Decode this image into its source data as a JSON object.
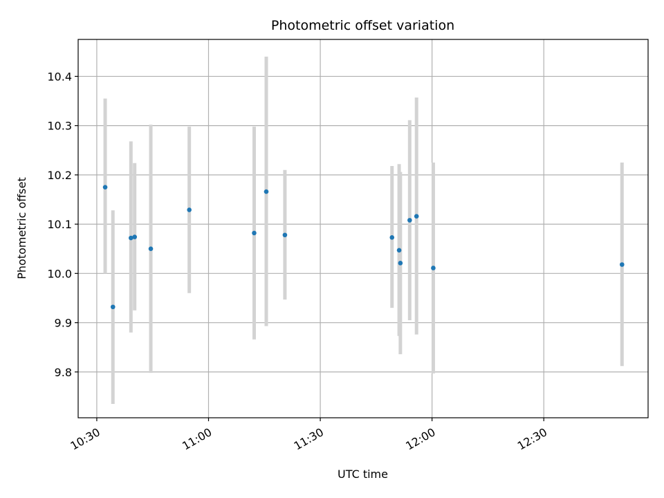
{
  "chart_data": {
    "type": "scatter",
    "title": "Photometric offset variation",
    "xlabel": "UTC time",
    "ylabel": "Photometric offset",
    "x_tick_labels": [
      "10:30",
      "11:00",
      "11:30",
      "12:00",
      "12:30"
    ],
    "x_ticks": [
      "10:30",
      "11:00",
      "11:30",
      "12:00",
      "12:30"
    ],
    "xlim": [
      "10:25",
      "12:58"
    ],
    "y_ticks": [
      9.8,
      9.9,
      10.0,
      10.1,
      10.2,
      10.3,
      10.4
    ],
    "y_tick_labels": [
      "9.8",
      "9.9",
      "10.0",
      "10.1",
      "10.2",
      "10.3",
      "10.4"
    ],
    "ylim": [
      9.707,
      10.475
    ],
    "grid": true,
    "colors": {
      "marker": "#1f77b4",
      "errorbar": "#d3d3d3",
      "grid": "#b0b0b0"
    },
    "points": [
      {
        "x": "10:32:15",
        "y": 10.175,
        "ylow": 10.0,
        "yhigh": 10.355
      },
      {
        "x": "10:34:20",
        "y": 9.932,
        "ylow": 9.735,
        "yhigh": 10.128
      },
      {
        "x": "10:39:10",
        "y": 10.072,
        "ylow": 9.88,
        "yhigh": 10.268
      },
      {
        "x": "10:40:10",
        "y": 10.074,
        "ylow": 9.925,
        "yhigh": 10.224
      },
      {
        "x": "10:44:30",
        "y": 10.05,
        "ylow": 9.798,
        "yhigh": 10.302
      },
      {
        "x": "10:54:50",
        "y": 10.129,
        "ylow": 9.96,
        "yhigh": 10.298
      },
      {
        "x": "11:12:15",
        "y": 10.082,
        "ylow": 9.866,
        "yhigh": 10.298
      },
      {
        "x": "11:15:30",
        "y": 10.166,
        "ylow": 9.893,
        "yhigh": 10.44
      },
      {
        "x": "11:20:30",
        "y": 10.078,
        "ylow": 9.947,
        "yhigh": 10.21
      },
      {
        "x": "11:49:15",
        "y": 10.073,
        "ylow": 9.93,
        "yhigh": 10.218
      },
      {
        "x": "11:51:10",
        "y": 10.047,
        "ylow": 9.873,
        "yhigh": 10.222
      },
      {
        "x": "11:51:30",
        "y": 10.021,
        "ylow": 9.836,
        "yhigh": 10.206
      },
      {
        "x": "11:54:00",
        "y": 10.108,
        "ylow": 9.905,
        "yhigh": 10.311
      },
      {
        "x": "11:55:50",
        "y": 10.116,
        "ylow": 9.876,
        "yhigh": 10.357
      },
      {
        "x": "12:00:20",
        "y": 10.011,
        "ylow": 9.797,
        "yhigh": 10.225
      },
      {
        "x": "12:51:00",
        "y": 10.018,
        "ylow": 9.812,
        "yhigh": 10.225
      }
    ]
  }
}
